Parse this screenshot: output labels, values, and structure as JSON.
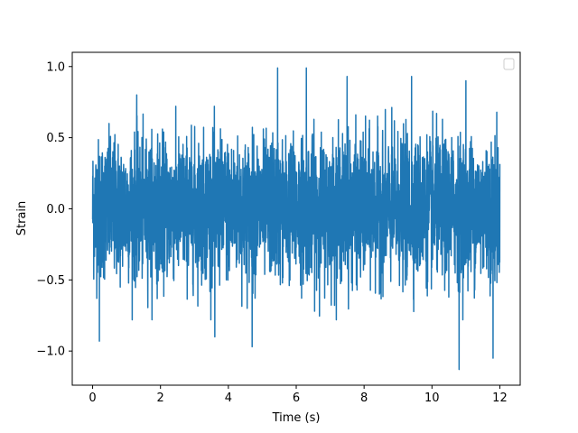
{
  "chart_data": {
    "type": "line",
    "title": "",
    "xlabel": "Time (s)",
    "ylabel": "Strain",
    "xlim": [
      -0.6,
      12.6
    ],
    "ylim": [
      -1.24,
      1.1
    ],
    "xticks": [
      0,
      2,
      4,
      6,
      8,
      10,
      12
    ],
    "xtick_labels": [
      "0",
      "2",
      "4",
      "6",
      "8",
      "10",
      "12"
    ],
    "yticks": [
      -1.0,
      -0.5,
      0.0,
      0.5,
      1.0
    ],
    "ytick_labels": [
      "−1.0",
      "−0.5",
      "0.0",
      "0.5",
      "1.0"
    ],
    "grid": false,
    "legend": {
      "placement": "top-right",
      "entries": []
    },
    "series": [
      {
        "color": "#1f77b4",
        "x_range": [
          0,
          12
        ],
        "notable_points": [
          {
            "x": 0.2,
            "y": 0.85
          },
          {
            "x": 0.2,
            "y": -0.93
          },
          {
            "x": 1.3,
            "y": 0.8
          },
          {
            "x": 3.6,
            "y": 0.97
          },
          {
            "x": 3.6,
            "y": -0.9
          },
          {
            "x": 4.7,
            "y": -0.97
          },
          {
            "x": 5.45,
            "y": 0.99
          },
          {
            "x": 6.3,
            "y": 0.99
          },
          {
            "x": 7.5,
            "y": 0.93
          },
          {
            "x": 9.4,
            "y": 0.93
          },
          {
            "x": 10.8,
            "y": -1.13
          },
          {
            "x": 11.0,
            "y": 0.9
          },
          {
            "x": 11.8,
            "y": -1.05
          }
        ]
      }
    ]
  }
}
